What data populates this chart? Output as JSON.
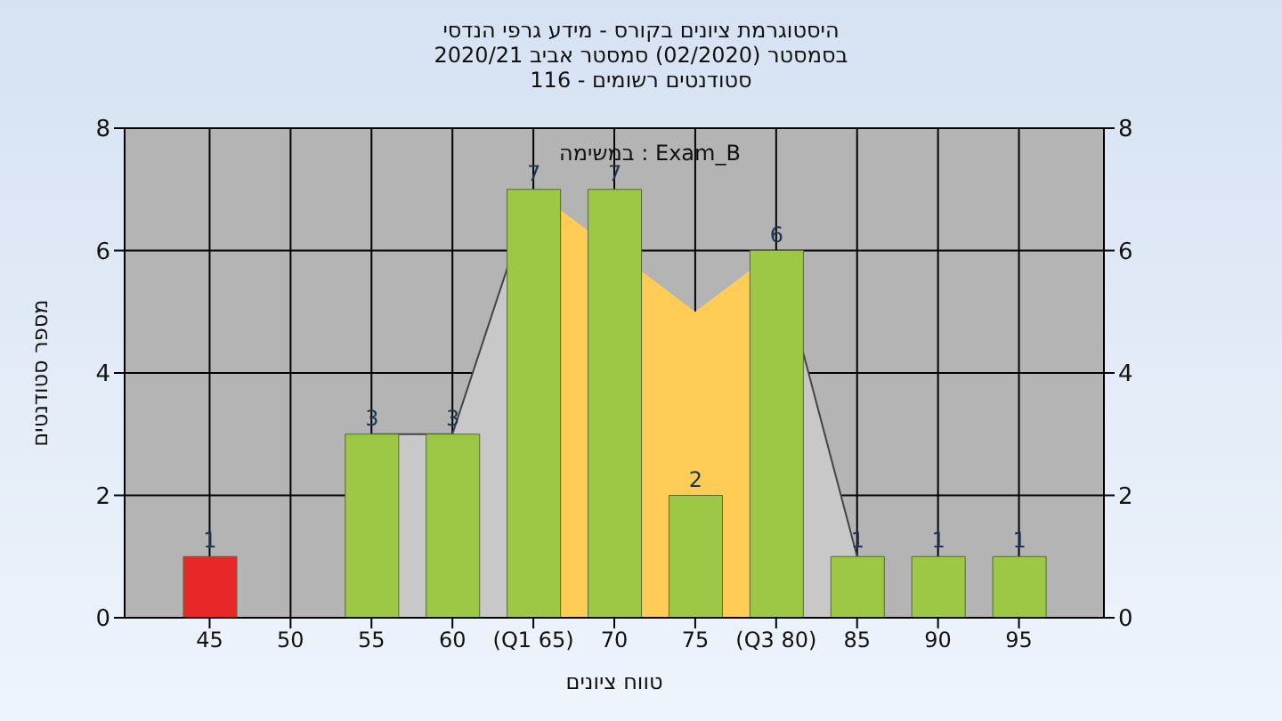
{
  "chart_data": {
    "type": "bar",
    "title": "היסטוגרמת ציונים בקורס - מידע גרפי הנדסי",
    "subtitle": "בסמסטר  (02/2020)  סמסטר אביב 2020/21\nסטודנטים רשומים - 116",
    "xlabel": "טווח ציונים",
    "ylabel": "מספר סטודנטים",
    "annotations": [
      "במשימה : Exam_B"
    ],
    "categories": [
      "45",
      "50",
      "55",
      "60",
      "(Q1 65)",
      "70",
      "75",
      "(Q3 80)",
      "85",
      "90",
      "95"
    ],
    "series": [
      {
        "type": "area",
        "color": "#c8c8c8",
        "values": [
          null,
          null,
          3,
          3,
          7,
          null,
          null,
          6,
          1,
          null,
          null
        ]
      },
      {
        "type": "area",
        "color": "#ffcc55",
        "values": [
          null,
          null,
          null,
          null,
          7,
          null,
          5,
          6,
          null,
          null,
          null
        ]
      },
      {
        "colors": [
          "#e82828",
          "#9cc846",
          "#9cc846",
          "#9cc846",
          "#9cc846",
          "#9cc846",
          "#9cc846",
          "#9cc846",
          "#9cc846",
          "#9cc846",
          "#9cc846"
        ],
        "values": [
          1,
          0,
          3,
          3,
          7,
          7,
          2,
          6,
          1,
          1,
          1
        ],
        "value_labels": [
          "1",
          null,
          "3",
          "3",
          "7",
          "7",
          "2",
          "6",
          "1",
          "1",
          "1"
        ]
      }
    ],
    "ylim": [
      0,
      8
    ],
    "yticks": [
      0,
      2,
      4,
      6,
      8
    ],
    "y2lim": [
      0,
      8
    ],
    "y2ticks": [
      0,
      2,
      4,
      6,
      8
    ],
    "grid": true
  }
}
